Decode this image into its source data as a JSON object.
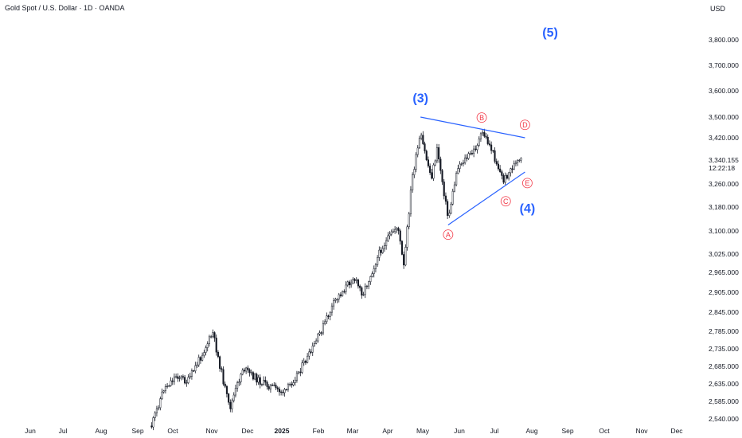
{
  "header": {
    "title": "Gold Spot / U.S. Dollar · 1D · OANDA",
    "currency": "USD"
  },
  "colors": {
    "candle": "#131722",
    "trendline": "#2962ff",
    "wave_main": "#2962ff",
    "wave_sub": "#f23645"
  },
  "chart_data": {
    "type": "candlestick",
    "y_ticks": [
      3800,
      3700,
      3600,
      3500,
      3420,
      3340,
      3260,
      3180,
      3100,
      3025,
      2965,
      2905,
      2845,
      2785,
      2735,
      2685,
      2635,
      2585,
      2540
    ],
    "y_tick_labels": [
      "3,800.000",
      "3,700.000",
      "3,600.000",
      "3,500.000",
      "3,420.000",
      "3,340.155",
      "3,260.000",
      "3,180.000",
      "3,100.000",
      "3,025.000",
      "2,965.000",
      "2,905.000",
      "2,845.000",
      "2,785.000",
      "2,735.000",
      "2,685.000",
      "2,635.000",
      "2,585.000",
      "2,540.000"
    ],
    "current_price": "3,340.155",
    "countdown": "12:22:18",
    "x_labels": [
      "Jun",
      "Jul",
      "Aug",
      "Sep",
      "Oct",
      "Nov",
      "Dec",
      "2025",
      "Feb",
      "Mar",
      "Apr",
      "May",
      "Jun",
      "Jul",
      "Aug",
      "Sep",
      "Oct",
      "Nov",
      "Dec"
    ],
    "price_path": [
      {
        "date": "2024-09-10",
        "price": 2520
      },
      {
        "date": "2024-09-20",
        "price": 2620
      },
      {
        "date": "2024-10-01",
        "price": 2660
      },
      {
        "date": "2024-10-10",
        "price": 2640
      },
      {
        "date": "2024-10-31",
        "price": 2780
      },
      {
        "date": "2024-11-14",
        "price": 2565
      },
      {
        "date": "2024-11-25",
        "price": 2680
      },
      {
        "date": "2024-12-10",
        "price": 2640
      },
      {
        "date": "2024-12-30",
        "price": 2610
      },
      {
        "date": "2025-01-20",
        "price": 2720
      },
      {
        "date": "2025-02-10",
        "price": 2880
      },
      {
        "date": "2025-02-25",
        "price": 2950
      },
      {
        "date": "2025-03-05",
        "price": 2900
      },
      {
        "date": "2025-03-20",
        "price": 3040
      },
      {
        "date": "2025-04-03",
        "price": 3120
      },
      {
        "date": "2025-04-08",
        "price": 2980
      },
      {
        "date": "2025-04-15",
        "price": 3280
      },
      {
        "date": "2025-04-22",
        "price": 3430
      },
      {
        "date": "2025-05-01",
        "price": 3280
      },
      {
        "date": "2025-05-06",
        "price": 3380
      },
      {
        "date": "2025-05-15",
        "price": 3140
      },
      {
        "date": "2025-05-23",
        "price": 3320
      },
      {
        "date": "2025-06-05",
        "price": 3370
      },
      {
        "date": "2025-06-13",
        "price": 3440
      },
      {
        "date": "2025-06-20",
        "price": 3380
      },
      {
        "date": "2025-06-30",
        "price": 3270
      },
      {
        "date": "2025-07-08",
        "price": 3320
      },
      {
        "date": "2025-07-15",
        "price": 3340
      }
    ],
    "triangle": {
      "upper": [
        {
          "date": "2025-04-22",
          "price": 3500
        },
        {
          "date": "2025-07-18",
          "price": 3420
        }
      ],
      "lower": [
        {
          "date": "2025-05-15",
          "price": 3120
        },
        {
          "date": "2025-07-18",
          "price": 3300
        }
      ]
    },
    "wave_labels": [
      {
        "label": "(3)",
        "kind": "main",
        "date": "2025-04-22",
        "price": 3575
      },
      {
        "label": "(5)",
        "kind": "main",
        "date": "2025-08-08",
        "price": 3832
      },
      {
        "label": "(4)",
        "kind": "main",
        "date": "2025-07-20",
        "price": 3177
      },
      {
        "label": "A",
        "kind": "sub",
        "date": "2025-05-15",
        "price": 3088
      },
      {
        "label": "B",
        "kind": "sub",
        "date": "2025-06-12",
        "price": 3498
      },
      {
        "label": "C",
        "kind": "sub",
        "date": "2025-07-02",
        "price": 3200
      },
      {
        "label": "D",
        "kind": "sub",
        "date": "2025-07-18",
        "price": 3470
      },
      {
        "label": "E",
        "kind": "sub",
        "date": "2025-07-20",
        "price": 3263
      }
    ]
  }
}
